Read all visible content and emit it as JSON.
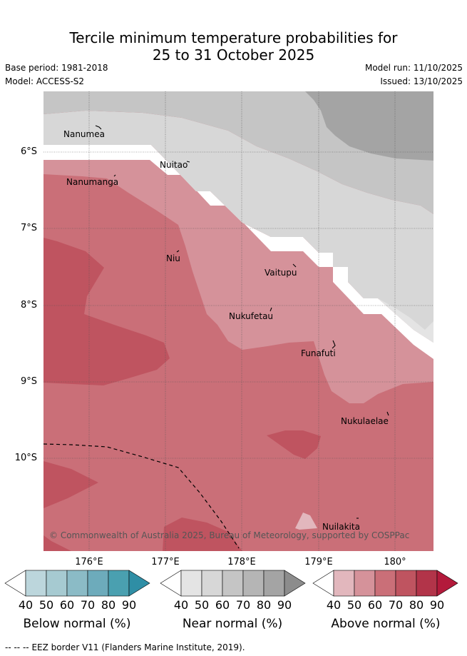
{
  "title": {
    "line1": "Tercile minimum temperature probabilities for",
    "line2": "25 to 31 October 2025"
  },
  "meta": {
    "base_period": "Base period: 1981-2018",
    "model": "Model: ACCESS-S2",
    "model_run": "Model run: 11/10/2025",
    "issued": "Issued: 13/10/2025"
  },
  "map": {
    "lat_labels": [
      "6°S",
      "7°S",
      "8°S",
      "9°S",
      "10°S"
    ],
    "lon_labels": [
      "176°E",
      "177°E",
      "178°E",
      "179°E",
      "180°"
    ],
    "places": [
      "Nanumea",
      "Nuitao",
      "Nanumanga",
      "Niu",
      "Vaitupu",
      "Nukufetau",
      "Funafuti",
      "Nukulaelae",
      "Nuilakita"
    ],
    "copyright": "© Commonwealth of Australia 2025, Bureau of Meteorology, supported by COSPPac"
  },
  "colors": {
    "below": [
      "#bcd6dc",
      "#a6cad1",
      "#8bbbc6",
      "#6dabbb",
      "#4aa0b0",
      "#2f8ea5"
    ],
    "near": [
      "#e4e4e4",
      "#d7d7d7",
      "#c5c5c5",
      "#b5b5b5",
      "#a4a4a4",
      "#8c8c8c"
    ],
    "above": [
      "#e2b7bd",
      "#d5929a",
      "#ca6f78",
      "#bf5460",
      "#b23449",
      "#b31a3b"
    ]
  },
  "colorbars": [
    {
      "label": "Below normal (%)",
      "ticks": [
        "40",
        "50",
        "60",
        "70",
        "80",
        "90"
      ]
    },
    {
      "label": "Near normal (%)",
      "ticks": [
        "40",
        "50",
        "60",
        "70",
        "80",
        "90"
      ]
    },
    {
      "label": "Above normal (%)",
      "ticks": [
        "40",
        "50",
        "60",
        "70",
        "80",
        "90"
      ]
    }
  ],
  "eez": {
    "symbol": "-- -- --",
    "text": "EEZ border V11 (Flanders Marine Institute, 2019)."
  }
}
